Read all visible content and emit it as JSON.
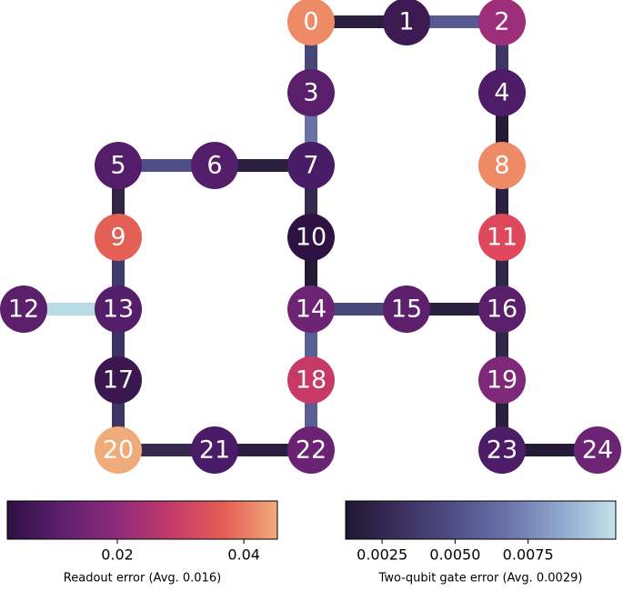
{
  "nodes": [
    {
      "label": "0",
      "color": "#ef8a66"
    },
    {
      "label": "1",
      "color": "#3d1a52"
    },
    {
      "label": "2",
      "color": "#9c2e7a"
    },
    {
      "label": "3",
      "color": "#5a1f6b"
    },
    {
      "label": "4",
      "color": "#4e1c68"
    },
    {
      "label": "5",
      "color": "#531d6a"
    },
    {
      "label": "6",
      "color": "#541e6a"
    },
    {
      "label": "7",
      "color": "#4a1b66"
    },
    {
      "label": "8",
      "color": "#ef8a66"
    },
    {
      "label": "9",
      "color": "#e45f55"
    },
    {
      "label": "10",
      "color": "#2e1243"
    },
    {
      "label": "11",
      "color": "#df475a"
    },
    {
      "label": "12",
      "color": "#5b1f6c"
    },
    {
      "label": "13",
      "color": "#541e6a"
    },
    {
      "label": "14",
      "color": "#6e2474"
    },
    {
      "label": "15",
      "color": "#5d206c"
    },
    {
      "label": "16",
      "color": "#5a1f6b"
    },
    {
      "label": "17",
      "color": "#3b1750"
    },
    {
      "label": "18",
      "color": "#c73a67"
    },
    {
      "label": "19",
      "color": "#7e2878"
    },
    {
      "label": "20",
      "color": "#f0ab7a"
    },
    {
      "label": "21",
      "color": "#4a1b66"
    },
    {
      "label": "22",
      "color": "#6a2373"
    },
    {
      "label": "23",
      "color": "#4d1c67"
    },
    {
      "label": "24",
      "color": "#6e2474"
    }
  ],
  "edges": [
    {
      "from": 0,
      "to": 1,
      "color": "#2a1d40"
    },
    {
      "from": 1,
      "to": 2,
      "color": "#5a5a92"
    },
    {
      "from": 0,
      "to": 3,
      "color": "#474779"
    },
    {
      "from": 3,
      "to": 7,
      "color": "#6a70a8"
    },
    {
      "from": 2,
      "to": 4,
      "color": "#3e3766"
    },
    {
      "from": 4,
      "to": 8,
      "color": "#231a36"
    },
    {
      "from": 5,
      "to": 6,
      "color": "#4f4e86"
    },
    {
      "from": 6,
      "to": 7,
      "color": "#2a1f3f"
    },
    {
      "from": 5,
      "to": 9,
      "color": "#312545"
    },
    {
      "from": 7,
      "to": 10,
      "color": "#35294f"
    },
    {
      "from": 8,
      "to": 11,
      "color": "#2a1f3f"
    },
    {
      "from": 9,
      "to": 13,
      "color": "#3f3a6c"
    },
    {
      "from": 10,
      "to": 14,
      "color": "#231a36"
    },
    {
      "from": 11,
      "to": 16,
      "color": "#2f2747"
    },
    {
      "from": 12,
      "to": 13,
      "color": "#b9dbe5"
    },
    {
      "from": 13,
      "to": 17,
      "color": "#3b3162"
    },
    {
      "from": 14,
      "to": 15,
      "color": "#474779"
    },
    {
      "from": 15,
      "to": 16,
      "color": "#2a1f3f"
    },
    {
      "from": 14,
      "to": 18,
      "color": "#5b5f98"
    },
    {
      "from": 16,
      "to": 19,
      "color": "#2f2747"
    },
    {
      "from": 17,
      "to": 20,
      "color": "#3e3766"
    },
    {
      "from": 18,
      "to": 22,
      "color": "#5a5d96"
    },
    {
      "from": 20,
      "to": 21,
      "color": "#35294f"
    },
    {
      "from": 21,
      "to": 22,
      "color": "#2a1f3f"
    },
    {
      "from": 19,
      "to": 23,
      "color": "#2a1f3f"
    },
    {
      "from": 23,
      "to": 24,
      "color": "#231a36"
    }
  ],
  "colorbars": [
    {
      "label": "Readout error (Avg. 0.016)",
      "lim": [
        0.0026,
        0.0453
      ],
      "ticks": [
        0.02,
        0.04
      ],
      "colors": [
        "#2d1142",
        "#5c1f6d",
        "#8d2a7a",
        "#c13a6a",
        "#e65c55",
        "#f0ab7a"
      ]
    },
    {
      "label": "Two-qubit gate error (Avg. 0.0029)",
      "lim": [
        0.00125,
        0.0105
      ],
      "ticks": [
        0.0025,
        {
          "value": 0.005,
          "label": "0.0050"
        },
        0.0075
      ],
      "colors": [
        "#1e1630",
        "#3b2f5e",
        "#4f4e86",
        "#6a74ab",
        "#8fa9cc",
        "#c4e2ea"
      ]
    }
  ]
}
